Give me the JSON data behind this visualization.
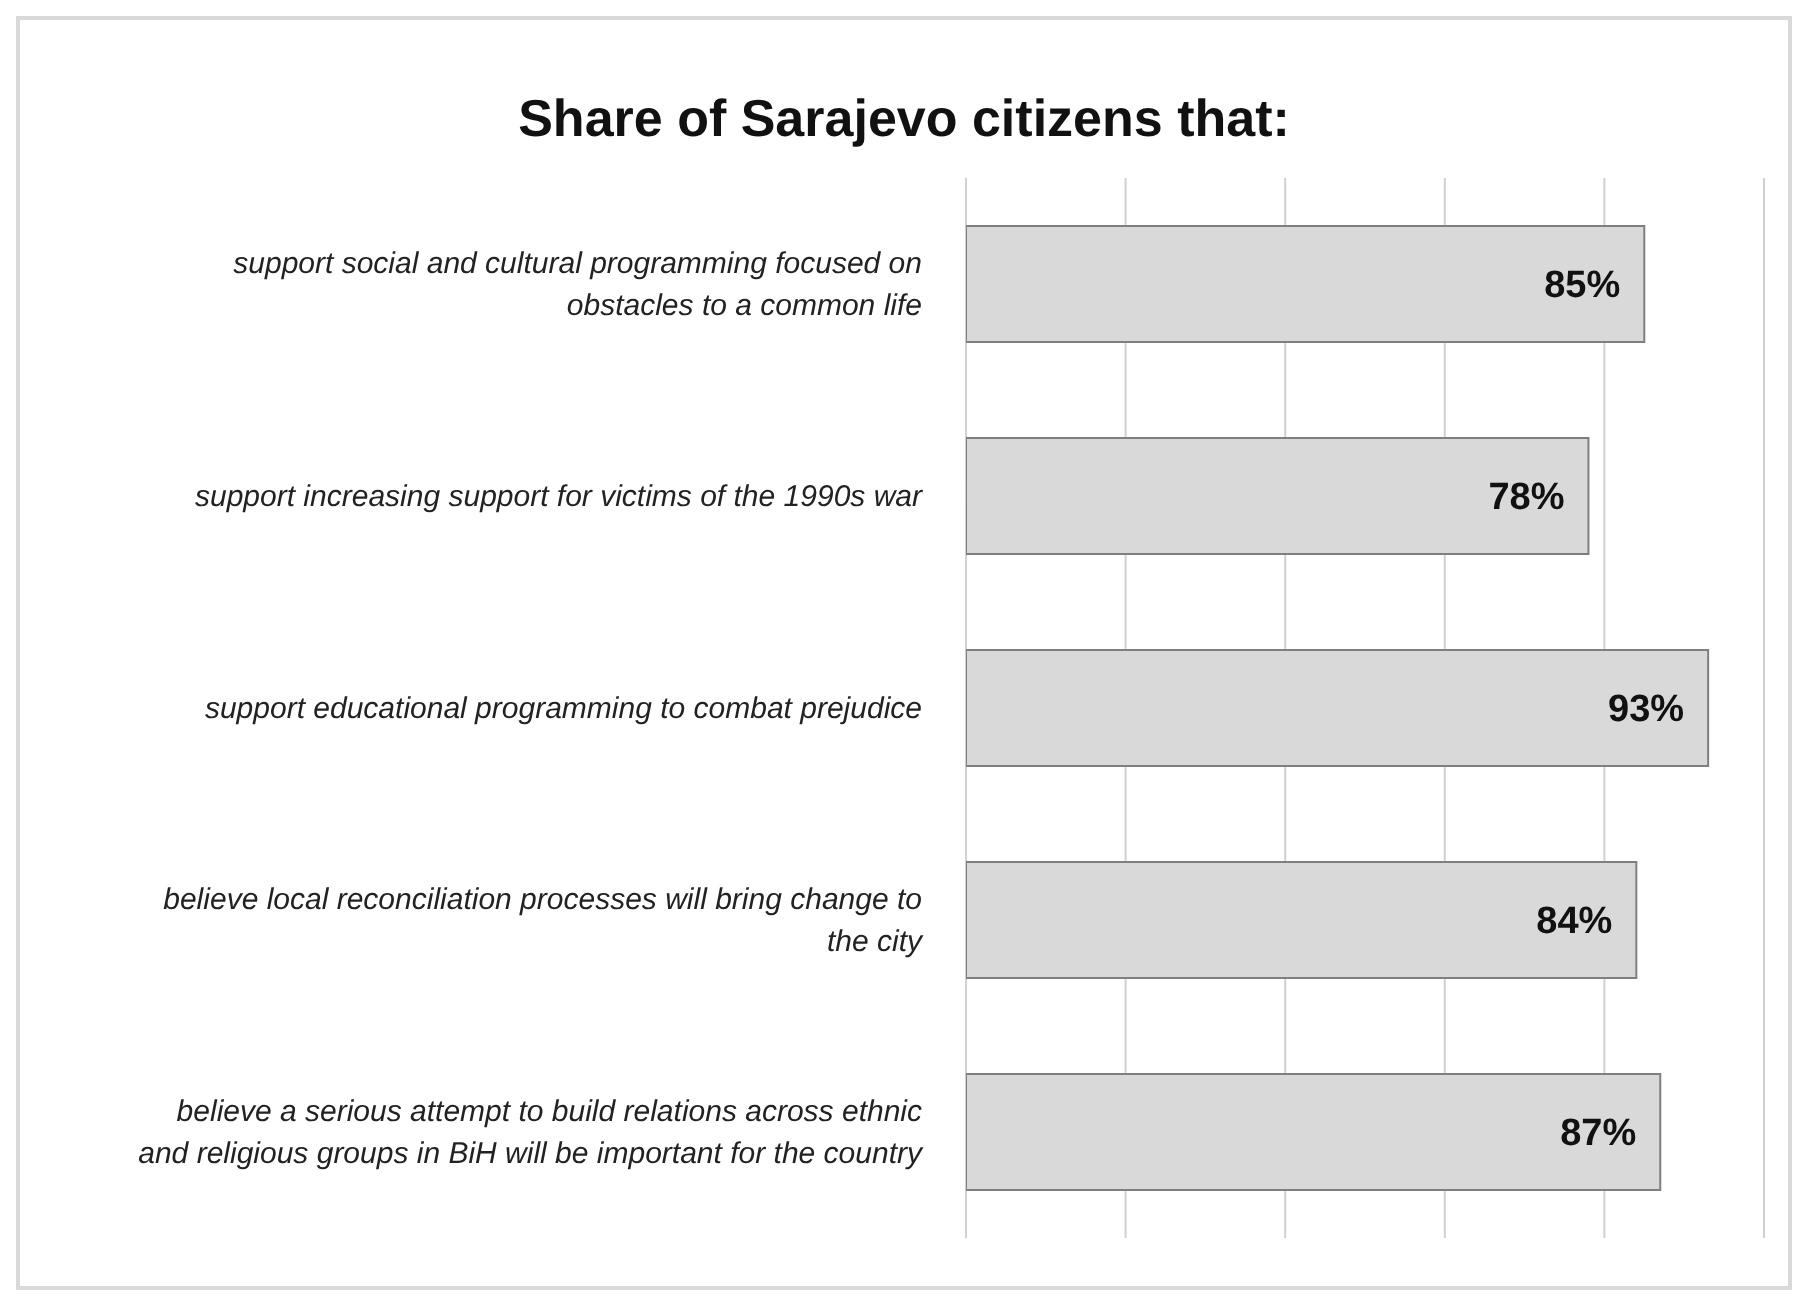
{
  "chart_data": {
    "type": "bar",
    "orientation": "horizontal",
    "title": "Share of Sarajevo citizens that:",
    "categories": [
      "support social and cultural programming focused on obstacles to a common life",
      "support increasing support for victims of the 1990s war",
      "support educational programming to combat prejudice",
      "believe local reconciliation processes will bring change to the city",
      "believe a serious attempt to build relations across ethnic and religious groups in BiH will be important for the country"
    ],
    "values": [
      85,
      78,
      93,
      84,
      87
    ],
    "value_labels": [
      "85%",
      "78%",
      "93%",
      "84%",
      "87%"
    ],
    "color": "#d9d9d9",
    "xlim": [
      0,
      100
    ],
    "xticks": [
      {
        "value": 0,
        "label": null
      },
      {
        "value": 20,
        "label": null
      },
      {
        "value": 40,
        "label": null
      },
      {
        "value": 60,
        "label": null
      },
      {
        "value": 80,
        "label": null
      },
      {
        "value": 100,
        "label": null
      }
    ],
    "grid": "x",
    "tick_labels": "y"
  }
}
